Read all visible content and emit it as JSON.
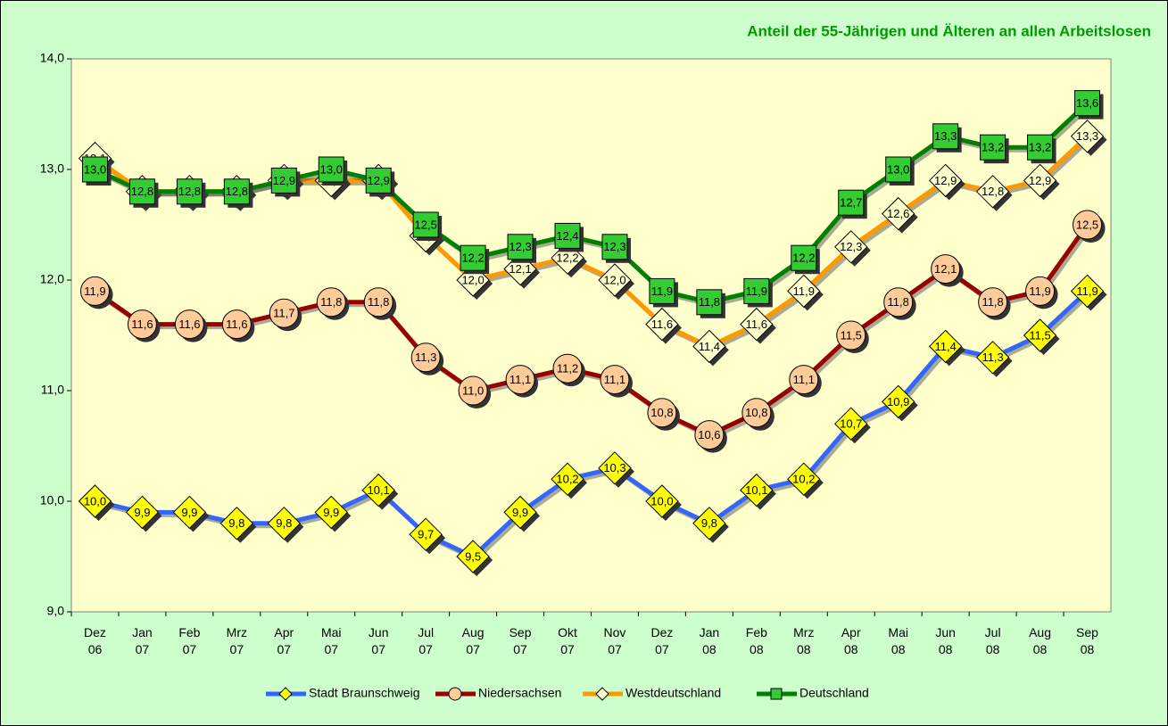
{
  "chart_data": {
    "type": "line",
    "title": "Anteil der 55-Jährigen und Älteren an allen Arbeitslosen",
    "categories": [
      "Dez 06",
      "Jan 07",
      "Feb 07",
      "Mrz 07",
      "Apr 07",
      "Mai 07",
      "Jun 07",
      "Jul 07",
      "Aug 07",
      "Sep 07",
      "Okt 07",
      "Nov 07",
      "Dez 07",
      "Jan 08",
      "Feb 08",
      "Mrz 08",
      "Apr 08",
      "Mai 08",
      "Jun 08",
      "Jul 08",
      "Aug 08",
      "Sep 08"
    ],
    "ylim": [
      9,
      14
    ],
    "yticks": [
      {
        "value": 9,
        "label": "9,0"
      },
      {
        "value": 10,
        "label": "10,0"
      },
      {
        "value": 11,
        "label": "11,0"
      },
      {
        "value": 12,
        "label": "12,0"
      },
      {
        "value": 13,
        "label": "13,0"
      },
      {
        "value": 14,
        "label": "14,0"
      }
    ],
    "grid": false,
    "legend": "bottom",
    "series": [
      {
        "name": "Stadt Braunschweig",
        "color": "#3366ff",
        "marker": "diamond",
        "marker_color": "#ffff00",
        "values": [
          10.0,
          9.9,
          9.9,
          9.8,
          9.8,
          9.9,
          10.1,
          9.7,
          9.5,
          9.9,
          10.2,
          10.3,
          10.0,
          9.8,
          10.1,
          10.2,
          10.7,
          10.9,
          11.4,
          11.3,
          11.5,
          11.9
        ],
        "value_labels": [
          "10,0",
          "9,9",
          "9,9",
          "9,8",
          "9,8",
          "9,9",
          "10,1",
          "9,7",
          "9,5",
          "9,9",
          "10,2",
          "10,3",
          "10,0",
          "9,8",
          "10,1",
          "10,2",
          "10,7",
          "10,9",
          "11,4",
          "11,3",
          "11,5",
          "11,9"
        ]
      },
      {
        "name": "Niedersachsen",
        "color": "#990000",
        "marker": "circle",
        "marker_color": "#ffcc99",
        "values": [
          11.9,
          11.6,
          11.6,
          11.6,
          11.7,
          11.8,
          11.8,
          11.3,
          11.0,
          11.1,
          11.2,
          11.1,
          10.8,
          10.6,
          10.8,
          11.1,
          11.5,
          11.8,
          12.1,
          11.8,
          11.9,
          12.5
        ],
        "value_labels": [
          "11,9",
          "11,6",
          "11,6",
          "11,6",
          "11,7",
          "11,8",
          "11,8",
          "11,3",
          "11,0",
          "11,1",
          "11,2",
          "11,1",
          "10,8",
          "10,6",
          "10,8",
          "11,1",
          "11,5",
          "11,8",
          "12,1",
          "11,8",
          "11,9",
          "12,5"
        ]
      },
      {
        "name": "Westdeutschland",
        "color": "#ff9900",
        "marker": "diamond",
        "marker_color": "#ffffcc",
        "values": [
          13.1,
          12.8,
          12.8,
          12.8,
          12.9,
          12.9,
          12.9,
          12.4,
          12.0,
          12.1,
          12.2,
          12.0,
          11.6,
          11.4,
          11.6,
          11.9,
          12.3,
          12.6,
          12.9,
          12.8,
          12.9,
          13.3
        ],
        "value_labels": [
          "13,1",
          "12,8",
          "12,8",
          "12,8",
          "12,9",
          "12,9",
          "12,9",
          "12,4",
          "12,0",
          "12,1",
          "12,2",
          "12,0",
          "11,6",
          "11,4",
          "11,6",
          "11,9",
          "12,3",
          "12,6",
          "12,9",
          "12,8",
          "12,9",
          "13,3"
        ]
      },
      {
        "name": "Deutschland",
        "color": "#008000",
        "marker": "square",
        "marker_color": "#33cc33",
        "values": [
          13.0,
          12.8,
          12.8,
          12.8,
          12.9,
          13.0,
          12.9,
          12.5,
          12.2,
          12.3,
          12.4,
          12.3,
          11.9,
          11.8,
          11.9,
          12.2,
          12.7,
          13.0,
          13.3,
          13.2,
          13.2,
          13.6
        ],
        "value_labels": [
          "13,0",
          "12,8",
          "12,8",
          "12,8",
          "12,9",
          "13,0",
          "12,9",
          "12,5",
          "12,2",
          "12,3",
          "12,4",
          "12,3",
          "11,9",
          "11,8",
          "11,9",
          "12,2",
          "12,7",
          "13,0",
          "13,3",
          "13,2",
          "13,2",
          "13,6"
        ]
      }
    ]
  }
}
